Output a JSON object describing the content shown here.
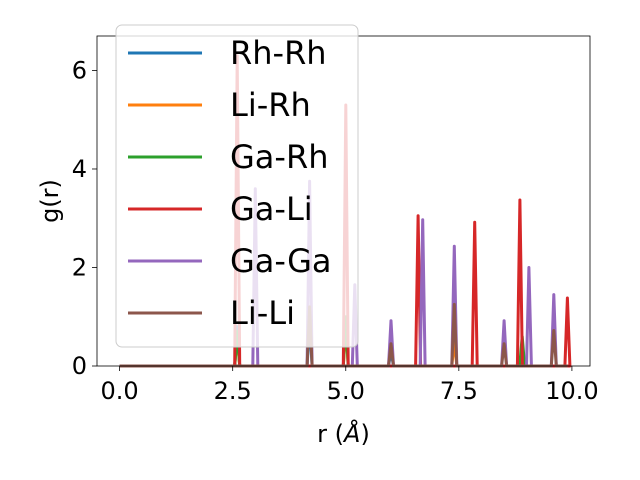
{
  "chart_data": {
    "type": "line",
    "xlabel": "r ($\\AA$)",
    "xlabel_parts": {
      "prefix": "r (",
      "symbol": "Å",
      "suffix": ")"
    },
    "ylabel": "g(r)",
    "xlim": [
      -0.5,
      10.4
    ],
    "ylim": [
      0,
      6.7
    ],
    "xticks": [
      0.0,
      2.5,
      5.0,
      7.5,
      10.0
    ],
    "xtick_labels": [
      "0.0",
      "2.5",
      "5.0",
      "7.5",
      "10.0"
    ],
    "yticks": [
      0,
      2,
      4,
      6
    ],
    "ytick_labels": [
      "0",
      "2",
      "4",
      "6"
    ],
    "grid": false,
    "legend": "upper-left",
    "baseline_x": [
      0.0,
      9.9
    ],
    "series": [
      {
        "name": "Rh-Rh",
        "color": "#1f77b4",
        "peaks": [
          [
            2.6,
            0.8
          ],
          [
            4.2,
            0.9
          ],
          [
            6.0,
            0.3
          ]
        ]
      },
      {
        "name": "Li-Rh",
        "color": "#ff7f0e",
        "peaks": [
          [
            2.6,
            0.6
          ],
          [
            5.0,
            0.8
          ],
          [
            7.4,
            0.5
          ]
        ]
      },
      {
        "name": "Ga-Rh",
        "color": "#2ca02c",
        "peaks": [
          [
            2.6,
            0.7
          ],
          [
            5.0,
            1.0
          ],
          [
            8.9,
            0.6
          ]
        ]
      },
      {
        "name": "Ga-Li",
        "color": "#d62728",
        "peaks": [
          [
            2.6,
            6.3
          ],
          [
            5.0,
            5.3
          ],
          [
            6.6,
            3.05
          ],
          [
            7.85,
            2.92
          ],
          [
            8.85,
            3.37
          ],
          [
            9.9,
            1.38
          ]
        ]
      },
      {
        "name": "Ga-Ga",
        "color": "#9467bd",
        "peaks": [
          [
            3.0,
            3.6
          ],
          [
            4.2,
            3.75
          ],
          [
            5.2,
            1.65
          ],
          [
            6.0,
            0.92
          ],
          [
            6.7,
            2.97
          ],
          [
            7.4,
            2.43
          ],
          [
            8.5,
            0.92
          ],
          [
            9.05,
            2.0
          ],
          [
            9.6,
            1.45
          ]
        ]
      },
      {
        "name": "Li-Li",
        "color": "#8c564b",
        "peaks": [
          [
            4.2,
            1.2
          ],
          [
            6.0,
            0.45
          ],
          [
            7.4,
            1.25
          ],
          [
            8.5,
            0.45
          ],
          [
            9.6,
            0.72
          ]
        ]
      }
    ]
  }
}
